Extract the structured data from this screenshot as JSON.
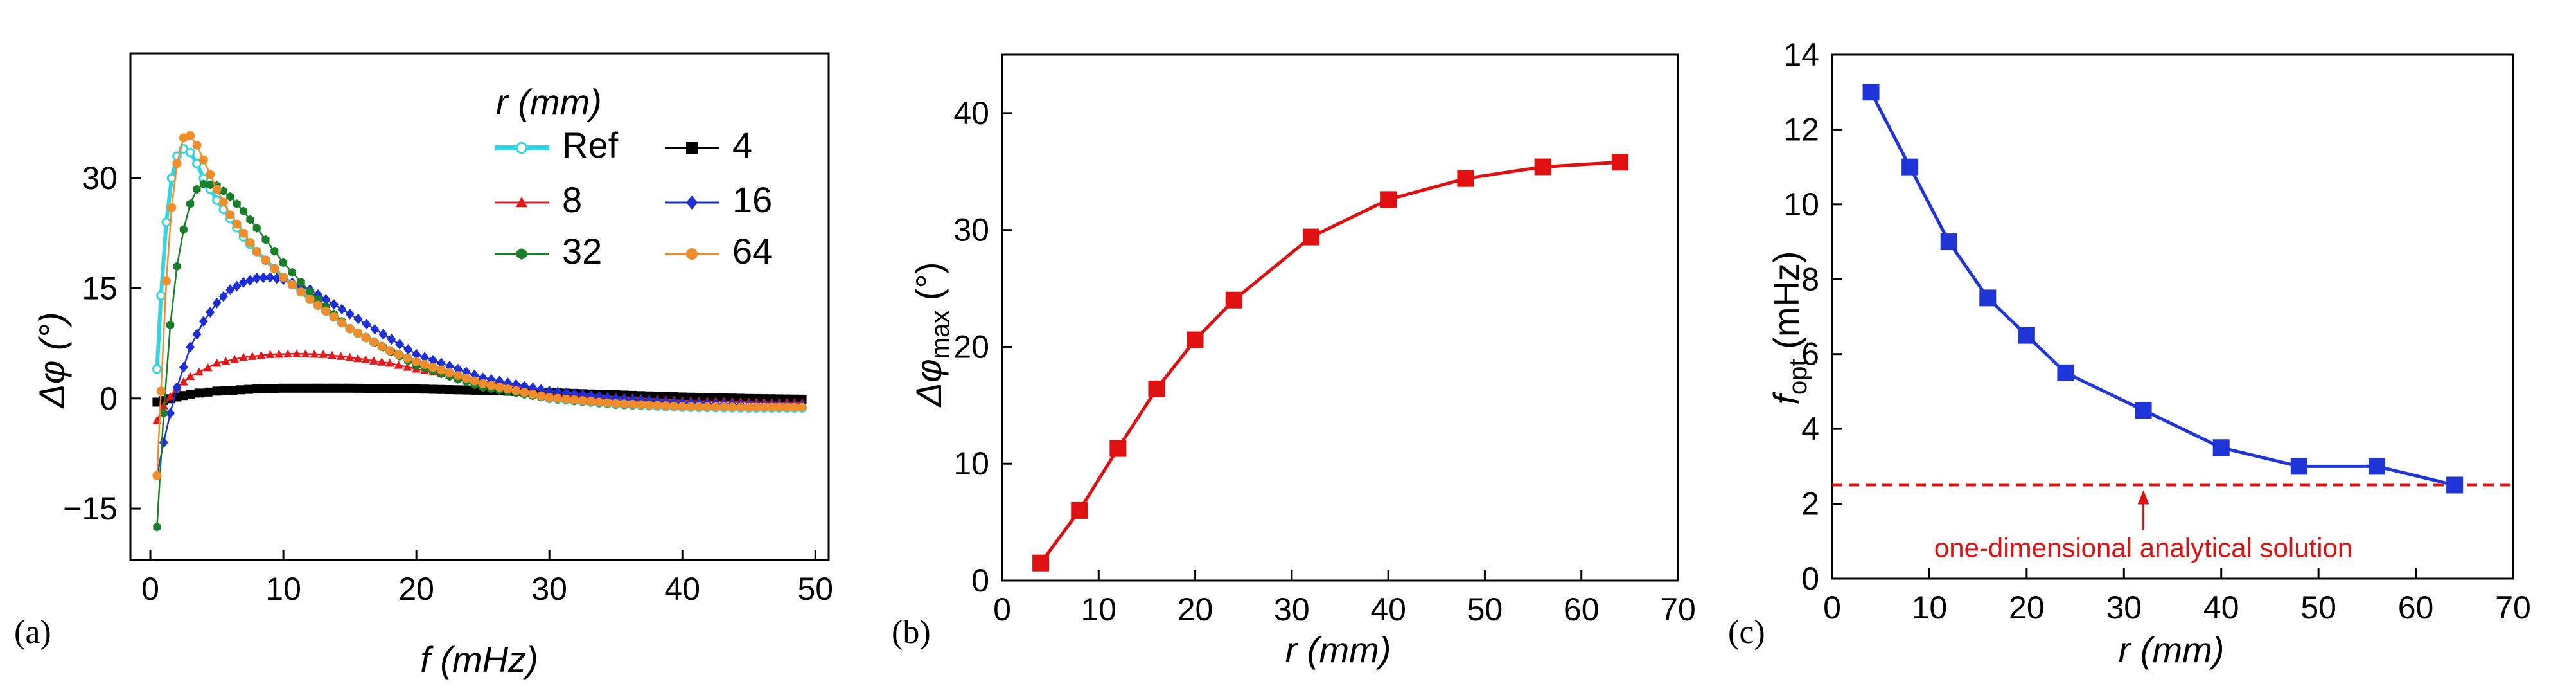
{
  "panel_labels": [
    "(a)",
    "(b)",
    "(c)"
  ],
  "colors": {
    "ref": "#33d6e0",
    "r4": "#000000",
    "r8": "#e31a1c",
    "r16": "#1f2fd6",
    "r32": "#1a7f2a",
    "r64": "#f08c2a",
    "panel_b": "#e01010",
    "panel_c": "#1f35d8",
    "annotation": "#e01010"
  },
  "chart_data": [
    {
      "type": "line",
      "panel": "(a)",
      "ylabel": "Δφ (°)",
      "xlabel": "f (mHz)",
      "xlim": [
        -1.5,
        51
      ],
      "ylim": [
        -22,
        47
      ],
      "xticks": [
        0,
        10,
        20,
        30,
        40,
        50
      ],
      "yticks": [
        -15,
        0,
        15,
        30
      ],
      "ytick_labels": [
        "−15",
        "0",
        "15",
        "30"
      ],
      "legend_title": "r (mm)",
      "legend_position": "top-right",
      "series": [
        {
          "name": "Ref",
          "color": "#33d6e0",
          "marker": "circle-open",
          "x": [
            0.5,
            0.8,
            1.2,
            1.6,
            2.0,
            2.5,
            3.0,
            3.5,
            4.0,
            5,
            6,
            7,
            8,
            10,
            12,
            15,
            18,
            20,
            25,
            30,
            35,
            40,
            45,
            49
          ],
          "y": [
            4,
            14,
            24,
            30,
            33,
            34,
            33.5,
            32,
            30,
            27,
            24.5,
            22,
            20,
            16.5,
            13.5,
            9.5,
            6.5,
            5,
            2,
            0,
            -0.8,
            -1.2,
            -1.3,
            -1.3
          ]
        },
        {
          "name": "4",
          "color": "#000000",
          "marker": "square",
          "x": [
            0.5,
            1,
            2,
            3,
            5,
            8,
            10,
            12,
            15,
            20,
            25,
            30,
            35,
            40,
            45,
            49
          ],
          "y": [
            -0.5,
            -0.3,
            0.2,
            0.6,
            1.0,
            1.3,
            1.4,
            1.4,
            1.4,
            1.3,
            1.1,
            0.8,
            0.5,
            0.2,
            0,
            -0.1
          ]
        },
        {
          "name": "8",
          "color": "#e31a1c",
          "marker": "triangle",
          "x": [
            0.5,
            1,
            2,
            3,
            5,
            7,
            9,
            11,
            13,
            15,
            18,
            20,
            25,
            30,
            35,
            40,
            45,
            49
          ],
          "y": [
            -3,
            -1,
            1.5,
            3,
            4.8,
            5.6,
            6,
            6.1,
            6,
            5.6,
            4.8,
            4,
            2.4,
            1,
            0.2,
            -0.3,
            -0.5,
            -0.6
          ]
        },
        {
          "name": "16",
          "color": "#1f2fd6",
          "marker": "diamond",
          "x": [
            0.5,
            1,
            1.5,
            2,
            3,
            4,
            5,
            6,
            7,
            8,
            9,
            10,
            12,
            15,
            20,
            25,
            30,
            35,
            40,
            45,
            49
          ],
          "y": [
            -10.5,
            -6,
            -2,
            1.5,
            7,
            10.5,
            13,
            14.8,
            15.8,
            16.4,
            16.5,
            16.2,
            14.8,
            11.5,
            6,
            2.8,
            1,
            0,
            -0.6,
            -0.9,
            -1.0
          ]
        },
        {
          "name": "32",
          "color": "#1a7f2a",
          "marker": "hexagon",
          "x": [
            0.5,
            1,
            1.5,
            2,
            2.5,
            3,
            3.5,
            4,
            5,
            6,
            7,
            8,
            10,
            12,
            15,
            20,
            25,
            30,
            35,
            40,
            45,
            49
          ],
          "y": [
            -17.5,
            -2,
            10,
            18,
            23,
            26.5,
            28.5,
            29.2,
            29,
            27.5,
            25.5,
            23.2,
            18.5,
            14.5,
            9.5,
            4.5,
            1.5,
            0,
            -0.8,
            -1.1,
            -1.2,
            -1.2
          ]
        },
        {
          "name": "64",
          "color": "#f08c2a",
          "marker": "circle",
          "x": [
            0.5,
            0.8,
            1.2,
            1.6,
            2.0,
            2.5,
            3.0,
            3.5,
            4.0,
            5,
            6,
            7,
            8,
            10,
            12,
            15,
            18,
            20,
            25,
            30,
            35,
            40,
            45,
            49
          ],
          "y": [
            -10.5,
            1,
            16,
            26,
            32,
            35.5,
            35.8,
            34.5,
            32.5,
            28.5,
            25,
            22.5,
            20,
            16.5,
            13.5,
            9.5,
            6.5,
            5,
            2,
            0.1,
            -0.7,
            -1.1,
            -1.2,
            -1.2
          ]
        }
      ]
    },
    {
      "type": "line",
      "panel": "(b)",
      "ylabel": "Δφmax (°)",
      "xlabel": "r (mm)",
      "xlim": [
        0,
        70
      ],
      "ylim": [
        0,
        45
      ],
      "xticks": [
        0,
        10,
        20,
        30,
        40,
        50,
        60,
        70
      ],
      "yticks": [
        0,
        10,
        20,
        30,
        40
      ],
      "series": [
        {
          "color": "#e01010",
          "marker": "square",
          "x": [
            4,
            8,
            12,
            16,
            20,
            24,
            32,
            40,
            48,
            56,
            64
          ],
          "y": [
            1.5,
            6,
            11.3,
            16.4,
            20.6,
            24,
            29.4,
            32.6,
            34.4,
            35.4,
            35.8
          ]
        }
      ]
    },
    {
      "type": "line",
      "panel": "(c)",
      "ylabel": "fopt (mHz)",
      "xlabel": "r (mm)",
      "xlim": [
        0,
        70
      ],
      "ylim": [
        0,
        14
      ],
      "xticks": [
        0,
        10,
        20,
        30,
        40,
        50,
        60,
        70
      ],
      "yticks": [
        0,
        2,
        4,
        6,
        8,
        10,
        12,
        14
      ],
      "series": [
        {
          "color": "#1f35d8",
          "marker": "square",
          "x": [
            4,
            8,
            12,
            16,
            20,
            24,
            32,
            40,
            48,
            56,
            64
          ],
          "y": [
            13,
            11,
            9,
            7.5,
            6.5,
            5.5,
            4.5,
            3.5,
            3,
            3,
            2.5
          ]
        }
      ],
      "reference_line": {
        "y": 2.5,
        "style": "dashed",
        "color": "#e01010",
        "label": "one-dimensional analytical solution",
        "arrow_x": 32
      }
    }
  ]
}
